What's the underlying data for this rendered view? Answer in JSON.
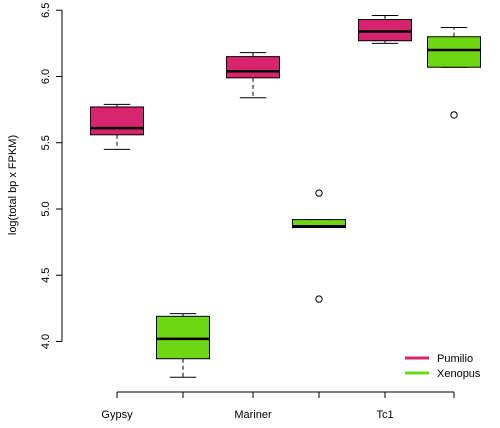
{
  "chart_data": {
    "type": "boxplot",
    "ylabel": "log(total bp x FPKM)",
    "ylim": [
      3.7,
      6.5
    ],
    "yticks": [
      "4.0",
      "4.5",
      "5.0",
      "5.5",
      "6.0",
      "6.5"
    ],
    "ytick_values": [
      4.0,
      4.5,
      5.0,
      5.5,
      6.0,
      6.5
    ],
    "categories": [
      "Gypsy",
      "Mariner",
      "Tc1"
    ],
    "series": [
      {
        "name": "Pumilio",
        "color": "#d6246e",
        "boxes": [
          {
            "category": "Gypsy",
            "whisker_low": 5.45,
            "q1": 5.56,
            "median": 5.61,
            "q3": 5.77,
            "whisker_high": 5.79,
            "outliers": []
          },
          {
            "category": "Mariner",
            "whisker_low": 5.84,
            "q1": 5.99,
            "median": 6.04,
            "q3": 6.15,
            "whisker_high": 6.18,
            "outliers": []
          },
          {
            "category": "Tc1",
            "whisker_low": 6.25,
            "q1": 6.27,
            "median": 6.34,
            "q3": 6.43,
            "whisker_high": 6.46,
            "outliers": []
          }
        ]
      },
      {
        "name": "Xenopus",
        "color": "#6fd614",
        "boxes": [
          {
            "category": "Gypsy",
            "whisker_low": 3.73,
            "q1": 3.87,
            "median": 4.02,
            "q3": 4.19,
            "whisker_high": 4.21,
            "outliers": []
          },
          {
            "category": "Mariner",
            "whisker_low": 4.86,
            "q1": 4.86,
            "median": 4.87,
            "q3": 4.92,
            "whisker_high": 4.92,
            "outliers": [
              5.12,
              4.32
            ]
          },
          {
            "category": "Tc1",
            "whisker_low": 6.07,
            "q1": 6.07,
            "median": 6.2,
            "q3": 6.3,
            "whisker_high": 6.37,
            "outliers": [
              5.71
            ]
          }
        ]
      }
    ],
    "legend": {
      "position": "bottom-right",
      "entries": [
        "Pumilio",
        "Xenopus"
      ]
    }
  }
}
